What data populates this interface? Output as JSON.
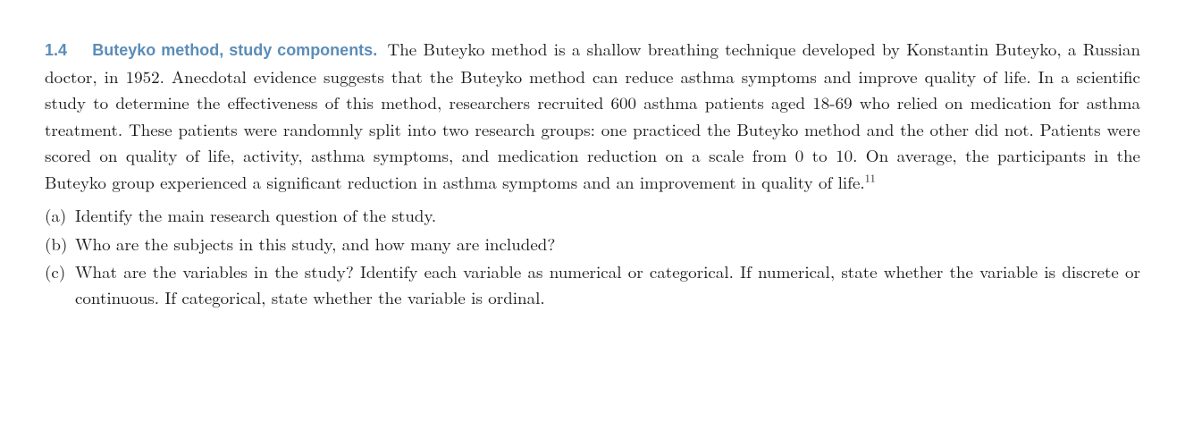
{
  "colors": {
    "heading": "#5b8db8",
    "body": "#1a1a1a",
    "background": "#ffffff"
  },
  "typography": {
    "heading_font": "Helvetica Neue, Arial, sans-serif",
    "heading_weight": "700",
    "heading_size_pt": 13,
    "body_font": "CMU Serif, Latin Modern Roman, Georgia, Times New Roman, serif",
    "body_size_pt": 14,
    "line_height": 1.55,
    "alignment": "justify"
  },
  "exercise": {
    "number": "1.4",
    "title": "Buteyko method, study components.",
    "body": "The Buteyko method is a shallow breathing technique developed by Konstantin Buteyko, a Russian doctor, in 1952. Anecdotal evidence suggests that the Buteyko method can reduce asthma symptoms and improve quality of life. In a scientific study to determine the effectiveness of this method, researchers recruited 600 asthma patients aged 18-69 who relied on medication for asthma treatment. These patients were randomnly split into two research groups: one practiced the Buteyko method and the other did not. Patients were scored on quality of life, activity, asthma symptoms, and medication reduction on a scale from 0 to 10. On average, the participants in the Buteyko group experienced a significant reduction in asthma symptoms and an improvement in quality of life.",
    "footnote_mark": "11"
  },
  "parts": [
    {
      "label": "(a)",
      "text": "Identify the main research question of the study."
    },
    {
      "label": "(b)",
      "text": "Who are the subjects in this study, and how many are included?"
    },
    {
      "label": "(c)",
      "text": "What are the variables in the study? Identify each variable as numerical or categorical. If numerical, state whether the variable is discrete or continuous. If categorical, state whether the variable is ordinal."
    }
  ]
}
